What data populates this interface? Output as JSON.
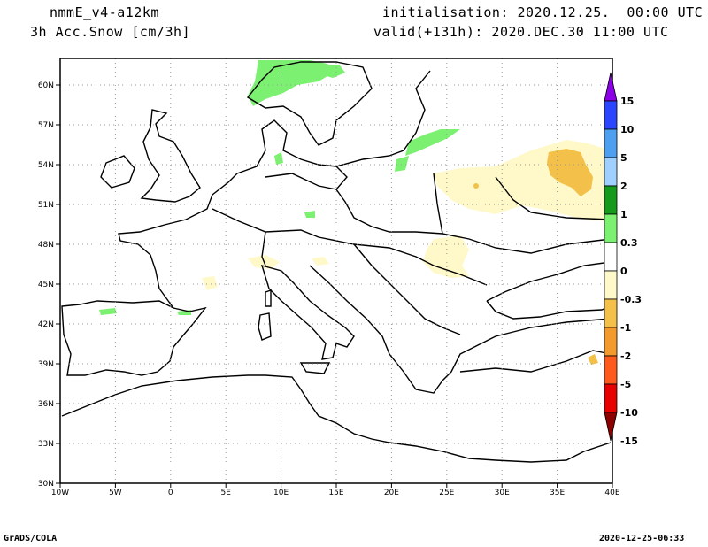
{
  "header": {
    "model": "nmmE_v4-a12km",
    "field": "3h Acc.Snow [cm/3h]",
    "init": "initialisation: 2020.12.25.  00:00 UTC",
    "valid": "valid(+131h): 2020.DEC.30 11:00 UTC"
  },
  "footer": {
    "left": "GrADS/COLA",
    "right": "2020-12-25-06:33"
  },
  "map": {
    "lon_range": [
      -10,
      40
    ],
    "lat_range": [
      30,
      62
    ],
    "lon_ticks": [
      "10W",
      "5W",
      "0",
      "5E",
      "10E",
      "15E",
      "20E",
      "25E",
      "30E",
      "35E",
      "40E"
    ],
    "lat_ticks": [
      "30N",
      "33N",
      "36N",
      "39N",
      "42N",
      "45N",
      "48N",
      "51N",
      "54N",
      "57N",
      "60N"
    ],
    "grid": "dotted"
  },
  "colorbar": {
    "labels": [
      "15",
      "10",
      "5",
      "2",
      "1",
      "0.3",
      "0",
      "-0.3",
      "-1",
      "-2",
      "-5",
      "-10",
      "-15"
    ],
    "colors": [
      "#8b00e6",
      "#2b45ff",
      "#4e9ff0",
      "#9fd0ff",
      "#159a1b",
      "#7cf070",
      "#ffffff",
      "#fff8c8",
      "#f3c14a",
      "#f39a2c",
      "#ff5a1e",
      "#e60000",
      "#8c0000"
    ]
  }
}
